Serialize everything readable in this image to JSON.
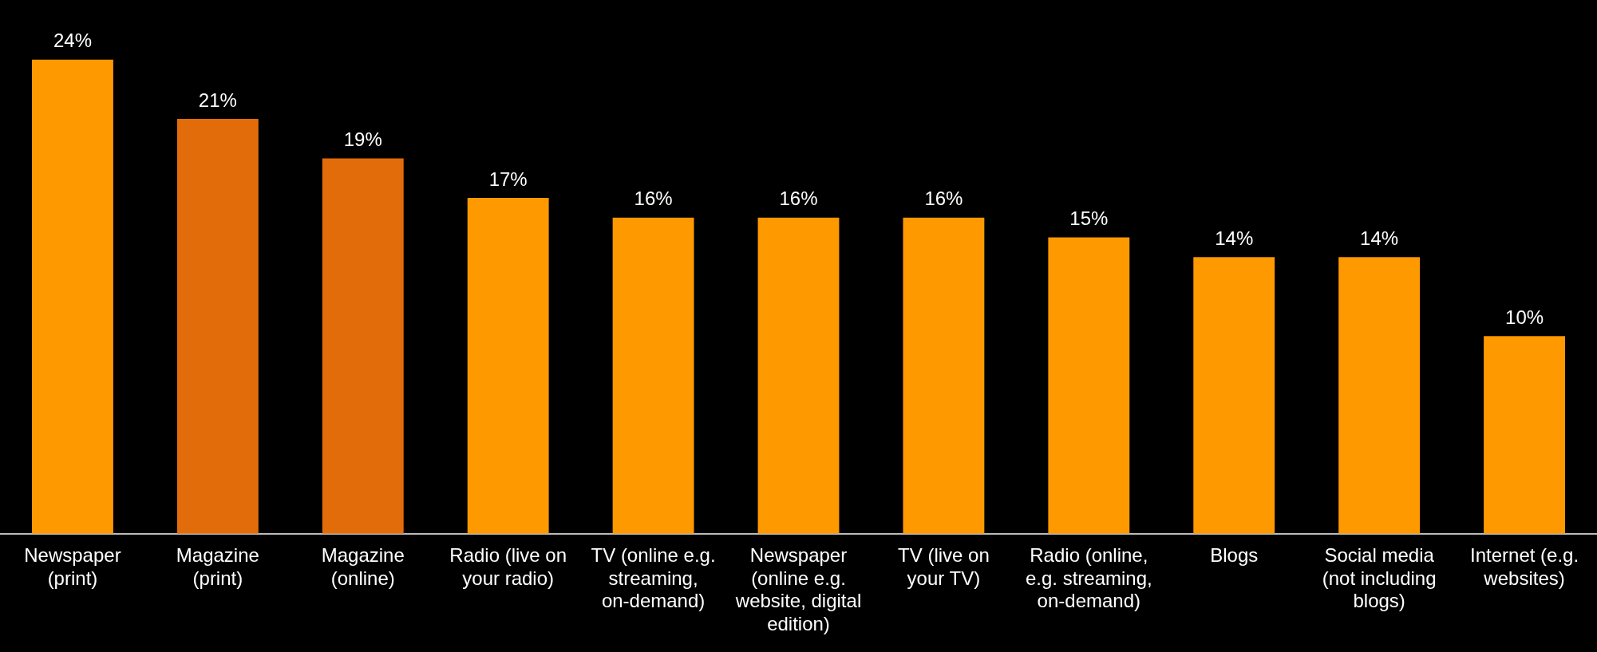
{
  "chart_data": {
    "type": "bar",
    "categories": [
      "Newspaper (print)",
      "Magazine (print)",
      "Magazine (online)",
      "Radio (live on your radio)",
      "TV (online e.g. streaming, on-demand)",
      "Newspaper (online e.g. website, digital edition)",
      "TV (live on your TV)",
      "Radio (online, e.g. streaming, on-demand)",
      "Blogs",
      "Social media (not including blogs)",
      "Internet (e.g. websites)"
    ],
    "values": [
      24,
      21,
      19,
      17,
      16,
      16,
      16,
      15,
      14,
      14,
      10
    ],
    "colors": [
      "#ff9900",
      "#e36c0a",
      "#e36c0a",
      "#ff9900",
      "#ff9900",
      "#ff9900",
      "#ff9900",
      "#ff9900",
      "#ff9900",
      "#ff9900",
      "#ff9900"
    ],
    "value_labels": [
      "24%",
      "21%",
      "19%",
      "17%",
      "16%",
      "16%",
      "16%",
      "15%",
      "14%",
      "14%",
      "10%"
    ],
    "legend": false
  }
}
